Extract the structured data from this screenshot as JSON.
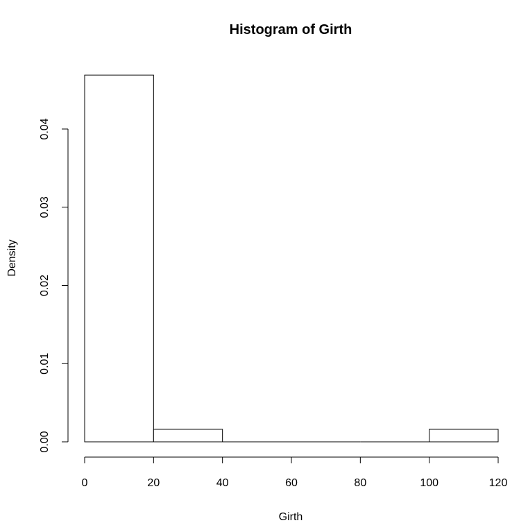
{
  "chart_data": {
    "type": "bar",
    "title": "Histogram of Girth",
    "xlabel": "Girth",
    "ylabel": "Density",
    "bins": [
      {
        "x0": 0,
        "x1": 20,
        "density": 0.0469
      },
      {
        "x0": 20,
        "x1": 40,
        "density": 0.0016
      },
      {
        "x0": 40,
        "x1": 60,
        "density": 0
      },
      {
        "x0": 60,
        "x1": 80,
        "density": 0
      },
      {
        "x0": 80,
        "x1": 100,
        "density": 0
      },
      {
        "x0": 100,
        "x1": 120,
        "density": 0.0016
      }
    ],
    "xlim": [
      0,
      120
    ],
    "ylim": [
      0,
      0.04
    ],
    "xticks": [
      "0",
      "20",
      "40",
      "60",
      "80",
      "100",
      "120"
    ],
    "yticks": [
      "0.00",
      "0.01",
      "0.02",
      "0.03",
      "0.04"
    ],
    "grid": false,
    "legend": "none",
    "bar_fill": "#ffffff",
    "bar_stroke": "#000000"
  }
}
